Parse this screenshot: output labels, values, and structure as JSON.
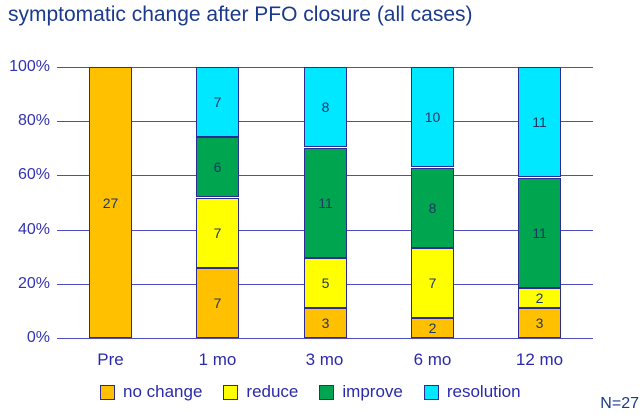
{
  "title": "symptomatic change after PFO closure (all cases)",
  "n_label": "N=27",
  "colors": {
    "title_text": "#1b3a8c",
    "axis_text": "#3232b4",
    "category_text": "#2a2aac",
    "legend_text": "#2a2aac",
    "segment_text": "#1f3864",
    "grid_line": "#4d4dc2",
    "bar_border": "#2b2b96",
    "background": "#ffffff"
  },
  "chart_data": {
    "type": "bar",
    "stacked": true,
    "title": "symptomatic change after PFO closure (all cases)",
    "categories": [
      "Pre",
      "1 mo",
      "3 mo",
      "6 mo",
      "12 mo"
    ],
    "series": [
      {
        "name": "no change",
        "color": "#FFC000",
        "values": [
          27,
          7,
          3,
          2,
          3
        ]
      },
      {
        "name": "reduce",
        "color": "#FFFF00",
        "values": [
          0,
          7,
          5,
          7,
          2
        ]
      },
      {
        "name": "improve",
        "color": "#00A550",
        "values": [
          0,
          6,
          11,
          8,
          11
        ]
      },
      {
        "name": "resolution",
        "color": "#00E8FF",
        "values": [
          0,
          7,
          8,
          10,
          11
        ]
      }
    ],
    "total_per_category": 27,
    "y_axis": {
      "unit": "percent",
      "min": 0,
      "max": 100,
      "tick_step": 20,
      "ticks": [
        "0%",
        "20%",
        "40%",
        "60%",
        "80%",
        "100%"
      ]
    },
    "grid": true,
    "legend_position": "bottom",
    "annotation": "N=27"
  }
}
